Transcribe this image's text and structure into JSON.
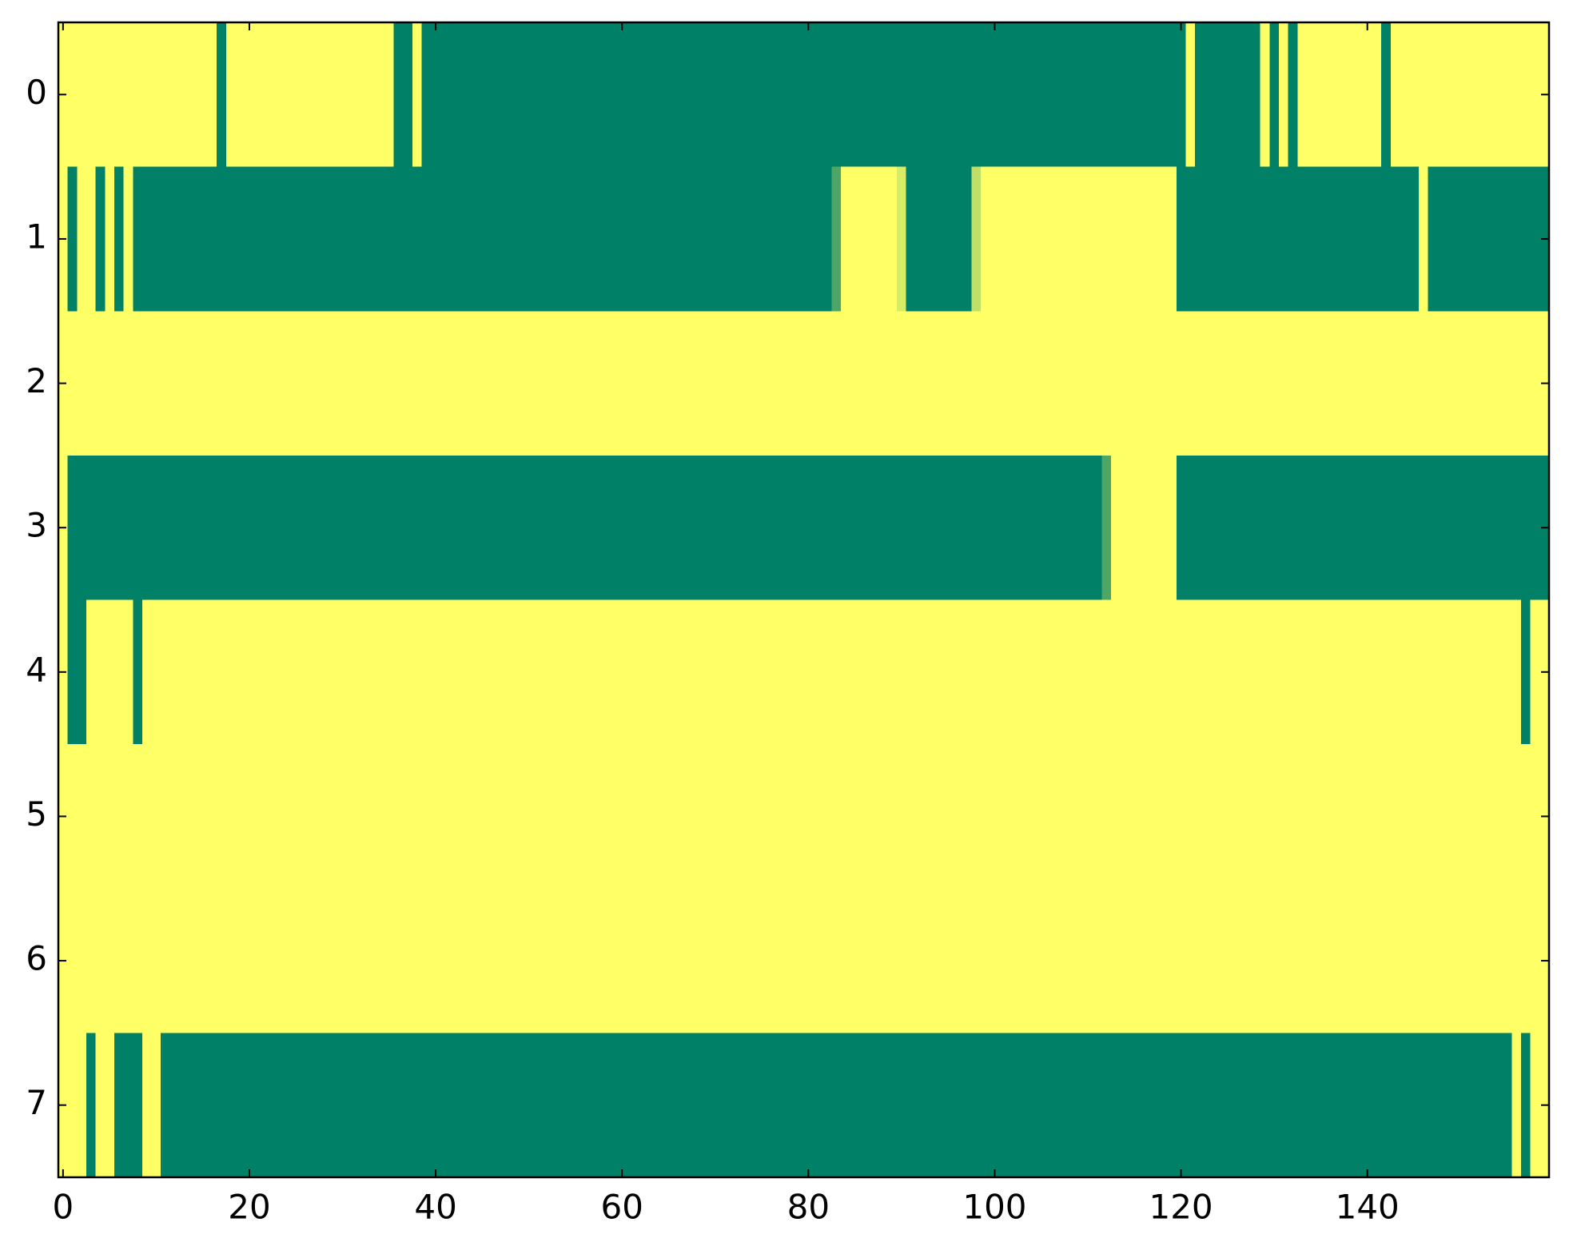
{
  "chart_data": {
    "type": "heatmap",
    "colormap": "summer",
    "xlim": [
      -0.5,
      159.5
    ],
    "ylim": [
      7.5,
      -0.5
    ],
    "xticks": [
      0,
      20,
      40,
      60,
      80,
      100,
      120,
      140
    ],
    "yticks": [
      0,
      1,
      2,
      3,
      4,
      5,
      6,
      7
    ],
    "values": [
      [
        1,
        1,
        1,
        1,
        1,
        1,
        1,
        1,
        1,
        1,
        1,
        1,
        1,
        1,
        1,
        1,
        1,
        0,
        1,
        1,
        1,
        1,
        1,
        1,
        1,
        1,
        1,
        1,
        1,
        1,
        1,
        1,
        1,
        1,
        1,
        1,
        0,
        0,
        1,
        0,
        0,
        0,
        0,
        0,
        0,
        0,
        0,
        0,
        0,
        0,
        0,
        0,
        0,
        0,
        0,
        0,
        0,
        0,
        0,
        0,
        0,
        0,
        0,
        0,
        0,
        0,
        0,
        0,
        0,
        0,
        0,
        0,
        0,
        0,
        0,
        0,
        0,
        0,
        0,
        0,
        0,
        0,
        0,
        0,
        0,
        0,
        0,
        0,
        0,
        0,
        0,
        0,
        0,
        0,
        0,
        0,
        0,
        0,
        0,
        0,
        0,
        0,
        0,
        0,
        0,
        0,
        0,
        0,
        0,
        0,
        0,
        0,
        0,
        0,
        0,
        0,
        0,
        0,
        0,
        0,
        0,
        1,
        0,
        0,
        0,
        0,
        0,
        0,
        0,
        1,
        0,
        1,
        0,
        1,
        1,
        1,
        1,
        1,
        1,
        1,
        1,
        1,
        0,
        1,
        1,
        1,
        1,
        1,
        1,
        1,
        1,
        1,
        1,
        1,
        1,
        1,
        1,
        1,
        1,
        1
      ],
      [
        1,
        0,
        1,
        1,
        0,
        1,
        0,
        1,
        0,
        0,
        0,
        0,
        0,
        0,
        0,
        0,
        0,
        0,
        0,
        0,
        0,
        0,
        0,
        0,
        0,
        0,
        0,
        0,
        0,
        0,
        0,
        0,
        0,
        0,
        0,
        0,
        0,
        0,
        0,
        0,
        0,
        0,
        0,
        0,
        0,
        0,
        0,
        0,
        0,
        0,
        0,
        0,
        0,
        0,
        0,
        0,
        0,
        0,
        0,
        0,
        0,
        0,
        0,
        0,
        0,
        0,
        0,
        0,
        0,
        0,
        0,
        0,
        0,
        0,
        0,
        0,
        0,
        0,
        0,
        0,
        0,
        0,
        0,
        0.3,
        1,
        1,
        1,
        1,
        1,
        1,
        0.85,
        0,
        0,
        0,
        0,
        0,
        0,
        0,
        0.75,
        1,
        1,
        1,
        1,
        1,
        1,
        1,
        1,
        1,
        1,
        1,
        1,
        1,
        1,
        1,
        1,
        1,
        1,
        1,
        1,
        1,
        0,
        0,
        0,
        0,
        0,
        0,
        0,
        0,
        0,
        0,
        0,
        0,
        0,
        0,
        0,
        0,
        0,
        0,
        0,
        0,
        0,
        0,
        0,
        0,
        0,
        0,
        1,
        0,
        0,
        0,
        0,
        0,
        0,
        0,
        0,
        0,
        0,
        0,
        0,
        0
      ],
      [
        1,
        1,
        1,
        1,
        1,
        1,
        1,
        1,
        1,
        1,
        1,
        1,
        1,
        1,
        1,
        1,
        1,
        1,
        1,
        1,
        1,
        1,
        1,
        1,
        1,
        1,
        1,
        1,
        1,
        1,
        1,
        1,
        1,
        1,
        1,
        1,
        1,
        1,
        1,
        1,
        1,
        1,
        1,
        1,
        1,
        1,
        1,
        1,
        1,
        1,
        1,
        1,
        1,
        1,
        1,
        1,
        1,
        1,
        1,
        1,
        1,
        1,
        1,
        1,
        1,
        1,
        1,
        1,
        1,
        1,
        1,
        1,
        1,
        1,
        1,
        1,
        1,
        1,
        1,
        1,
        1,
        1,
        1,
        1,
        1,
        1,
        1,
        1,
        1,
        1,
        1,
        1,
        1,
        1,
        1,
        1,
        1,
        1,
        1,
        1,
        1,
        1,
        1,
        1,
        1,
        1,
        1,
        1,
        1,
        1,
        1,
        1,
        1,
        1,
        1,
        1,
        1,
        1,
        1,
        1,
        1,
        1,
        1,
        1,
        1,
        1,
        1,
        1,
        1,
        1,
        1,
        1,
        1,
        1,
        1,
        1,
        1,
        1,
        1,
        1,
        1,
        1,
        1,
        1,
        1,
        1,
        1,
        1,
        1,
        1,
        1,
        1,
        1,
        1,
        1,
        1,
        1,
        1,
        1,
        1
      ],
      [
        1,
        0,
        0,
        0,
        0,
        0,
        0,
        0,
        0,
        0,
        0,
        0,
        0,
        0,
        0,
        0,
        0,
        0,
        0,
        0,
        0,
        0,
        0,
        0,
        0,
        0,
        0,
        0,
        0,
        0,
        0,
        0,
        0,
        0,
        0,
        0,
        0,
        0,
        0,
        0,
        0,
        0,
        0,
        0,
        0,
        0,
        0,
        0,
        0,
        0,
        0,
        0,
        0,
        0,
        0,
        0,
        0,
        0,
        0,
        0,
        0,
        0,
        0,
        0,
        0,
        0,
        0,
        0,
        0,
        0,
        0,
        0,
        0,
        0,
        0,
        0,
        0,
        0,
        0,
        0,
        0,
        0,
        0,
        0,
        0,
        0,
        0,
        0,
        0,
        0,
        0,
        0,
        0,
        0,
        0,
        0,
        0,
        0,
        0,
        0,
        0,
        0,
        0,
        0,
        0,
        0,
        0,
        0,
        0,
        0,
        0,
        0,
        0.3,
        1,
        1,
        1,
        1,
        1,
        1,
        1,
        0,
        0,
        0,
        0,
        0,
        0,
        0,
        0,
        0,
        0,
        0,
        0,
        0,
        0,
        0,
        0,
        0,
        0,
        0,
        0,
        0,
        0,
        0,
        0,
        0,
        0,
        0,
        0,
        0,
        0,
        0,
        0,
        0,
        0,
        0,
        0,
        0,
        0,
        0,
        0
      ],
      [
        1,
        0,
        0,
        1,
        1,
        1,
        1,
        1,
        0,
        1,
        1,
        1,
        1,
        1,
        1,
        1,
        1,
        1,
        1,
        1,
        1,
        1,
        1,
        1,
        1,
        1,
        1,
        1,
        1,
        1,
        1,
        1,
        1,
        1,
        1,
        1,
        1,
        1,
        1,
        1,
        1,
        1,
        1,
        1,
        1,
        1,
        1,
        1,
        1,
        1,
        1,
        1,
        1,
        1,
        1,
        1,
        1,
        1,
        1,
        1,
        1,
        1,
        1,
        1,
        1,
        1,
        1,
        1,
        1,
        1,
        1,
        1,
        1,
        1,
        1,
        1,
        1,
        1,
        1,
        1,
        1,
        1,
        1,
        1,
        1,
        1,
        1,
        1,
        1,
        1,
        1,
        1,
        1,
        1,
        1,
        1,
        1,
        1,
        1,
        1,
        1,
        1,
        1,
        1,
        1,
        1,
        1,
        1,
        1,
        1,
        1,
        1,
        1,
        1,
        1,
        1,
        1,
        1,
        1,
        1,
        1,
        1,
        1,
        1,
        1,
        1,
        1,
        1,
        1,
        1,
        1,
        1,
        1,
        1,
        1,
        1,
        1,
        1,
        1,
        1,
        1,
        1,
        1,
        1,
        1,
        1,
        1,
        1,
        1,
        1,
        1,
        1,
        1,
        1,
        1,
        1,
        1,
        0,
        1,
        1
      ],
      [
        1,
        1,
        1,
        1,
        1,
        1,
        1,
        1,
        1,
        1,
        1,
        1,
        1,
        1,
        1,
        1,
        1,
        1,
        1,
        1,
        1,
        1,
        1,
        1,
        1,
        1,
        1,
        1,
        1,
        1,
        1,
        1,
        1,
        1,
        1,
        1,
        1,
        1,
        1,
        1,
        1,
        1,
        1,
        1,
        1,
        1,
        1,
        1,
        1,
        1,
        1,
        1,
        1,
        1,
        1,
        1,
        1,
        1,
        1,
        1,
        1,
        1,
        1,
        1,
        1,
        1,
        1,
        1,
        1,
        1,
        1,
        1,
        1,
        1,
        1,
        1,
        1,
        1,
        1,
        1,
        1,
        1,
        1,
        1,
        1,
        1,
        1,
        1,
        1,
        1,
        1,
        1,
        1,
        1,
        1,
        1,
        1,
        1,
        1,
        1,
        1,
        1,
        1,
        1,
        1,
        1,
        1,
        1,
        1,
        1,
        1,
        1,
        1,
        1,
        1,
        1,
        1,
        1,
        1,
        1,
        1,
        1,
        1,
        1,
        1,
        1,
        1,
        1,
        1,
        1,
        1,
        1,
        1,
        1,
        1,
        1,
        1,
        1,
        1,
        1,
        1,
        1,
        1,
        1,
        1,
        1,
        1,
        1,
        1,
        1,
        1,
        1,
        1,
        1,
        1,
        1,
        1,
        1,
        1,
        1
      ],
      [
        1,
        1,
        1,
        1,
        1,
        1,
        1,
        1,
        1,
        1,
        1,
        1,
        1,
        1,
        1,
        1,
        1,
        1,
        1,
        1,
        1,
        1,
        1,
        1,
        1,
        1,
        1,
        1,
        1,
        1,
        1,
        1,
        1,
        1,
        1,
        1,
        1,
        1,
        1,
        1,
        1,
        1,
        1,
        1,
        1,
        1,
        1,
        1,
        1,
        1,
        1,
        1,
        1,
        1,
        1,
        1,
        1,
        1,
        1,
        1,
        1,
        1,
        1,
        1,
        1,
        1,
        1,
        1,
        1,
        1,
        1,
        1,
        1,
        1,
        1,
        1,
        1,
        1,
        1,
        1,
        1,
        1,
        1,
        1,
        1,
        1,
        1,
        1,
        1,
        1,
        1,
        1,
        1,
        1,
        1,
        1,
        1,
        1,
        1,
        1,
        1,
        1,
        1,
        1,
        1,
        1,
        1,
        1,
        1,
        1,
        1,
        1,
        1,
        1,
        1,
        1,
        1,
        1,
        1,
        1,
        1,
        1,
        1,
        1,
        1,
        1,
        1,
        1,
        1,
        1,
        1,
        1,
        1,
        1,
        1,
        1,
        1,
        1,
        1,
        1,
        1,
        1,
        1,
        1,
        1,
        1,
        1,
        1,
        1,
        1,
        1,
        1,
        1,
        1,
        1,
        1,
        1,
        1,
        1,
        1
      ],
      [
        1,
        1,
        1,
        0,
        1,
        1,
        0,
        0,
        0,
        1,
        1,
        0,
        0,
        0,
        0,
        0,
        0,
        0,
        0,
        0,
        0,
        0,
        0,
        0,
        0,
        0,
        0,
        0,
        0,
        0,
        0,
        0,
        0,
        0,
        0,
        0,
        0,
        0,
        0,
        0,
        0,
        0,
        0,
        0,
        0,
        0,
        0,
        0,
        0,
        0,
        0,
        0,
        0,
        0,
        0,
        0,
        0,
        0,
        0,
        0,
        0,
        0,
        0,
        0,
        0,
        0,
        0,
        0,
        0,
        0,
        0,
        0,
        0,
        0,
        0,
        0,
        0,
        0,
        0,
        0,
        0,
        0,
        0,
        0,
        0,
        0,
        0,
        0,
        0,
        0,
        0,
        0,
        0,
        0,
        0,
        0,
        0,
        0,
        0,
        0,
        0,
        0,
        0,
        0,
        0,
        0,
        0,
        0,
        0,
        0,
        0,
        0,
        0,
        0,
        0,
        0,
        0,
        0,
        0,
        0,
        0,
        0,
        0,
        0,
        0,
        0,
        0,
        0,
        0,
        0,
        0,
        0,
        0,
        0,
        0,
        0,
        0,
        0,
        0,
        0,
        0,
        0,
        0,
        0,
        0,
        0,
        0,
        0,
        0,
        0,
        0,
        0,
        0,
        0,
        0,
        0,
        1,
        0,
        1,
        1
      ]
    ]
  }
}
